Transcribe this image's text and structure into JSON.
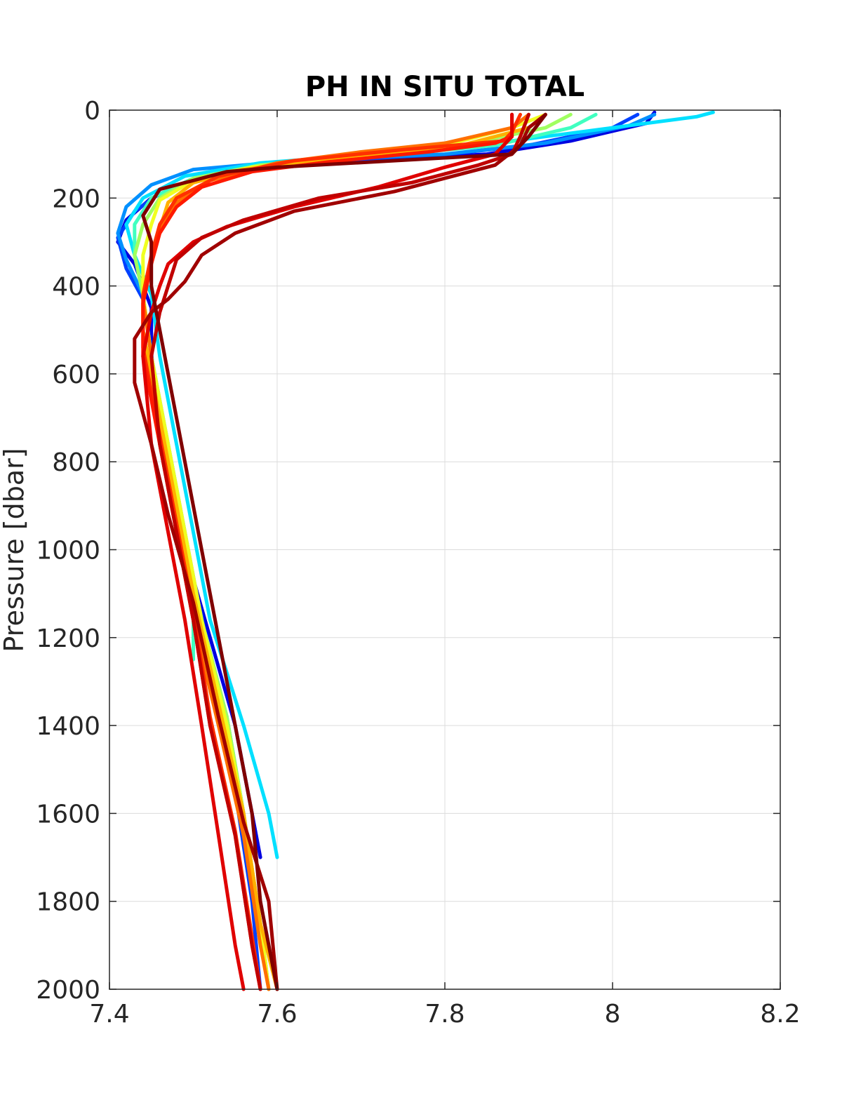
{
  "chart_data": {
    "type": "line",
    "title": "PH IN SITU TOTAL",
    "xlabel": "",
    "ylabel": "Pressure [dbar]",
    "xlim": [
      7.4,
      8.2
    ],
    "ylim": [
      0,
      2000
    ],
    "y_reversed": true,
    "grid": true,
    "legend": "none",
    "x_ticks": [
      "7.4",
      "7.6",
      "7.8",
      "8",
      "8.2"
    ],
    "y_ticks": [
      "0",
      "200",
      "400",
      "600",
      "800",
      "1000",
      "1200",
      "1400",
      "1600",
      "1800",
      "2000"
    ],
    "series": [
      {
        "color": "#0000e0",
        "points": [
          [
            8.05,
            5
          ],
          [
            8.04,
            30
          ],
          [
            7.95,
            70
          ],
          [
            7.85,
            100
          ],
          [
            7.7,
            115
          ],
          [
            7.58,
            130
          ],
          [
            7.5,
            160
          ],
          [
            7.45,
            200
          ],
          [
            7.42,
            250
          ],
          [
            7.41,
            300
          ],
          [
            7.43,
            350
          ],
          [
            7.45,
            450
          ],
          [
            7.45,
            600
          ],
          [
            7.47,
            800
          ],
          [
            7.49,
            1000
          ],
          [
            7.52,
            1200
          ],
          [
            7.55,
            1400
          ],
          [
            7.57,
            1600
          ],
          [
            7.58,
            1700
          ]
        ]
      },
      {
        "color": "#0040ff",
        "points": [
          [
            8.03,
            10
          ],
          [
            8.0,
            40
          ],
          [
            7.9,
            80
          ],
          [
            7.78,
            105
          ],
          [
            7.62,
            125
          ],
          [
            7.52,
            150
          ],
          [
            7.46,
            190
          ],
          [
            7.43,
            230
          ],
          [
            7.41,
            290
          ],
          [
            7.42,
            360
          ],
          [
            7.44,
            430
          ],
          [
            7.45,
            550
          ],
          [
            7.46,
            750
          ],
          [
            7.48,
            950
          ],
          [
            7.51,
            1150
          ],
          [
            7.53,
            1350
          ],
          [
            7.55,
            1550
          ],
          [
            7.57,
            1800
          ],
          [
            7.58,
            2000
          ]
        ]
      },
      {
        "color": "#0090ff",
        "points": [
          [
            8.05,
            10
          ],
          [
            8.02,
            35
          ],
          [
            7.92,
            75
          ],
          [
            7.8,
            100
          ],
          [
            7.62,
            115
          ],
          [
            7.5,
            135
          ],
          [
            7.45,
            170
          ],
          [
            7.42,
            220
          ],
          [
            7.41,
            280
          ],
          [
            7.42,
            340
          ],
          [
            7.44,
            420
          ],
          [
            7.45,
            560
          ],
          [
            7.47,
            760
          ],
          [
            7.49,
            960
          ],
          [
            7.51,
            1160
          ],
          [
            7.54,
            1380
          ],
          [
            7.56,
            1600
          ],
          [
            7.58,
            1850
          ],
          [
            7.59,
            2000
          ]
        ]
      },
      {
        "color": "#00e0ff",
        "points": [
          [
            8.12,
            5
          ],
          [
            8.1,
            15
          ],
          [
            8.0,
            40
          ],
          [
            7.88,
            70
          ],
          [
            7.72,
            100
          ],
          [
            7.58,
            120
          ],
          [
            7.49,
            150
          ],
          [
            7.44,
            200
          ],
          [
            7.42,
            260
          ],
          [
            7.43,
            330
          ],
          [
            7.45,
            420
          ],
          [
            7.46,
            560
          ],
          [
            7.48,
            760
          ],
          [
            7.5,
            960
          ],
          [
            7.52,
            1160
          ],
          [
            7.56,
            1400
          ],
          [
            7.59,
            1600
          ],
          [
            7.6,
            1700
          ]
        ]
      },
      {
        "color": "#40ffc0",
        "points": [
          [
            7.98,
            10
          ],
          [
            7.95,
            40
          ],
          [
            7.86,
            80
          ],
          [
            7.72,
            105
          ],
          [
            7.58,
            125
          ],
          [
            7.5,
            155
          ],
          [
            7.45,
            200
          ],
          [
            7.43,
            260
          ],
          [
            7.43,
            330
          ],
          [
            7.44,
            420
          ],
          [
            7.45,
            560
          ],
          [
            7.47,
            760
          ],
          [
            7.49,
            960
          ],
          [
            7.5,
            1160
          ],
          [
            7.5,
            1250
          ]
        ]
      },
      {
        "color": "#a0ff60",
        "points": [
          [
            7.95,
            10
          ],
          [
            7.92,
            40
          ],
          [
            7.82,
            80
          ],
          [
            7.7,
            105
          ],
          [
            7.58,
            125
          ],
          [
            7.5,
            155
          ],
          [
            7.46,
            200
          ],
          [
            7.44,
            260
          ],
          [
            7.43,
            330
          ],
          [
            7.44,
            420
          ],
          [
            7.45,
            560
          ],
          [
            7.47,
            760
          ],
          [
            7.49,
            960
          ],
          [
            7.51,
            1160
          ],
          [
            7.54,
            1380
          ],
          [
            7.56,
            1600
          ],
          [
            7.58,
            1850
          ],
          [
            7.59,
            2000
          ]
        ]
      },
      {
        "color": "#f0ff20",
        "points": [
          [
            7.92,
            10
          ],
          [
            7.88,
            40
          ],
          [
            7.8,
            80
          ],
          [
            7.68,
            110
          ],
          [
            7.57,
            130
          ],
          [
            7.5,
            160
          ],
          [
            7.46,
            205
          ],
          [
            7.45,
            260
          ],
          [
            7.44,
            330
          ],
          [
            7.44,
            420
          ],
          [
            7.45,
            560
          ],
          [
            7.47,
            760
          ],
          [
            7.49,
            960
          ],
          [
            7.51,
            1160
          ],
          [
            7.54,
            1400
          ],
          [
            7.56,
            1600
          ],
          [
            7.58,
            1850
          ],
          [
            7.59,
            2000
          ]
        ]
      },
      {
        "color": "#ffb000",
        "points": [
          [
            7.92,
            10
          ],
          [
            7.9,
            40
          ],
          [
            7.82,
            80
          ],
          [
            7.66,
            110
          ],
          [
            7.56,
            135
          ],
          [
            7.5,
            165
          ],
          [
            7.47,
            210
          ],
          [
            7.46,
            270
          ],
          [
            7.45,
            340
          ],
          [
            7.44,
            430
          ],
          [
            7.44,
            500
          ],
          [
            7.46,
            700
          ],
          [
            7.48,
            900
          ],
          [
            7.5,
            1100
          ],
          [
            7.53,
            1350
          ],
          [
            7.56,
            1600
          ],
          [
            7.58,
            1850
          ],
          [
            7.6,
            2000
          ]
        ]
      },
      {
        "color": "#ff7000",
        "points": [
          [
            7.9,
            10
          ],
          [
            7.88,
            40
          ],
          [
            7.8,
            75
          ],
          [
            7.7,
            95
          ],
          [
            7.6,
            120
          ],
          [
            7.52,
            160
          ],
          [
            7.48,
            210
          ],
          [
            7.46,
            270
          ],
          [
            7.45,
            340
          ],
          [
            7.44,
            430
          ],
          [
            7.45,
            560
          ],
          [
            7.46,
            760
          ],
          [
            7.48,
            960
          ],
          [
            7.5,
            1160
          ],
          [
            7.53,
            1400
          ],
          [
            7.56,
            1650
          ],
          [
            7.58,
            1900
          ],
          [
            7.59,
            2000
          ]
        ]
      },
      {
        "color": "#ff3000",
        "points": [
          [
            7.89,
            10
          ],
          [
            7.88,
            50
          ],
          [
            7.87,
            70
          ],
          [
            7.75,
            90
          ],
          [
            7.62,
            115
          ],
          [
            7.53,
            150
          ],
          [
            7.48,
            200
          ],
          [
            7.46,
            260
          ],
          [
            7.45,
            330
          ],
          [
            7.44,
            420
          ],
          [
            7.44,
            540
          ],
          [
            7.46,
            740
          ],
          [
            7.48,
            940
          ],
          [
            7.5,
            1140
          ],
          [
            7.52,
            1380
          ],
          [
            7.55,
            1640
          ],
          [
            7.57,
            1880
          ],
          [
            7.58,
            2000
          ]
        ]
      },
      {
        "color": "#ff1a00",
        "points": [
          [
            7.88,
            10
          ],
          [
            7.88,
            60
          ],
          [
            7.86,
            75
          ],
          [
            7.78,
            95
          ],
          [
            7.66,
            118
          ],
          [
            7.57,
            140
          ],
          [
            7.51,
            175
          ],
          [
            7.48,
            220
          ],
          [
            7.46,
            280
          ],
          [
            7.45,
            350
          ],
          [
            7.44,
            440
          ],
          [
            7.44,
            560
          ],
          [
            7.46,
            760
          ],
          [
            7.48,
            960
          ],
          [
            7.5,
            1160
          ],
          [
            7.52,
            1400
          ],
          [
            7.55,
            1650
          ],
          [
            7.57,
            1900
          ],
          [
            7.58,
            2000
          ]
        ]
      },
      {
        "color": "#e00000",
        "points": [
          [
            7.88,
            10
          ],
          [
            7.88,
            60
          ],
          [
            7.86,
            100
          ],
          [
            7.8,
            130
          ],
          [
            7.72,
            175
          ],
          [
            7.62,
            220
          ],
          [
            7.54,
            265
          ],
          [
            7.5,
            300
          ],
          [
            7.47,
            350
          ],
          [
            7.46,
            400
          ],
          [
            7.45,
            460
          ],
          [
            7.44,
            560
          ],
          [
            7.45,
            760
          ],
          [
            7.47,
            960
          ],
          [
            7.49,
            1160
          ],
          [
            7.51,
            1400
          ],
          [
            7.53,
            1650
          ],
          [
            7.55,
            1900
          ],
          [
            7.56,
            2000
          ]
        ]
      },
      {
        "color": "#c00000",
        "points": [
          [
            7.9,
            10
          ],
          [
            7.89,
            60
          ],
          [
            7.88,
            100
          ],
          [
            7.84,
            125
          ],
          [
            7.76,
            165
          ],
          [
            7.65,
            200
          ],
          [
            7.56,
            250
          ],
          [
            7.51,
            290
          ],
          [
            7.48,
            340
          ],
          [
            7.47,
            400
          ],
          [
            7.46,
            460
          ],
          [
            7.45,
            560
          ],
          [
            7.46,
            760
          ],
          [
            7.48,
            960
          ],
          [
            7.5,
            1160
          ],
          [
            7.52,
            1400
          ],
          [
            7.55,
            1650
          ],
          [
            7.57,
            1900
          ],
          [
            7.58,
            2000
          ]
        ]
      },
      {
        "color": "#a00000",
        "points": [
          [
            7.92,
            10
          ],
          [
            7.9,
            40
          ],
          [
            7.89,
            80
          ],
          [
            7.86,
            125
          ],
          [
            7.74,
            185
          ],
          [
            7.62,
            230
          ],
          [
            7.55,
            280
          ],
          [
            7.51,
            330
          ],
          [
            7.49,
            390
          ],
          [
            7.47,
            430
          ],
          [
            7.45,
            460
          ],
          [
            7.43,
            520
          ],
          [
            7.43,
            620
          ],
          [
            7.45,
            760
          ],
          [
            7.47,
            920
          ],
          [
            7.5,
            1120
          ],
          [
            7.53,
            1380
          ],
          [
            7.56,
            1620
          ],
          [
            7.59,
            1800
          ],
          [
            7.6,
            2000
          ]
        ]
      },
      {
        "color": "#800000",
        "points": [
          [
            7.92,
            10
          ],
          [
            7.9,
            60
          ],
          [
            7.88,
            100
          ],
          [
            7.6,
            130
          ],
          [
            7.54,
            140
          ],
          [
            7.46,
            180
          ],
          [
            7.44,
            240
          ],
          [
            7.45,
            300
          ],
          [
            7.45,
            400
          ],
          [
            7.46,
            500
          ],
          [
            7.47,
            600
          ],
          [
            7.49,
            800
          ],
          [
            7.51,
            1000
          ],
          [
            7.53,
            1200
          ],
          [
            7.55,
            1400
          ],
          [
            7.57,
            1600
          ],
          [
            7.58,
            1800
          ],
          [
            7.6,
            2000
          ]
        ]
      }
    ]
  }
}
